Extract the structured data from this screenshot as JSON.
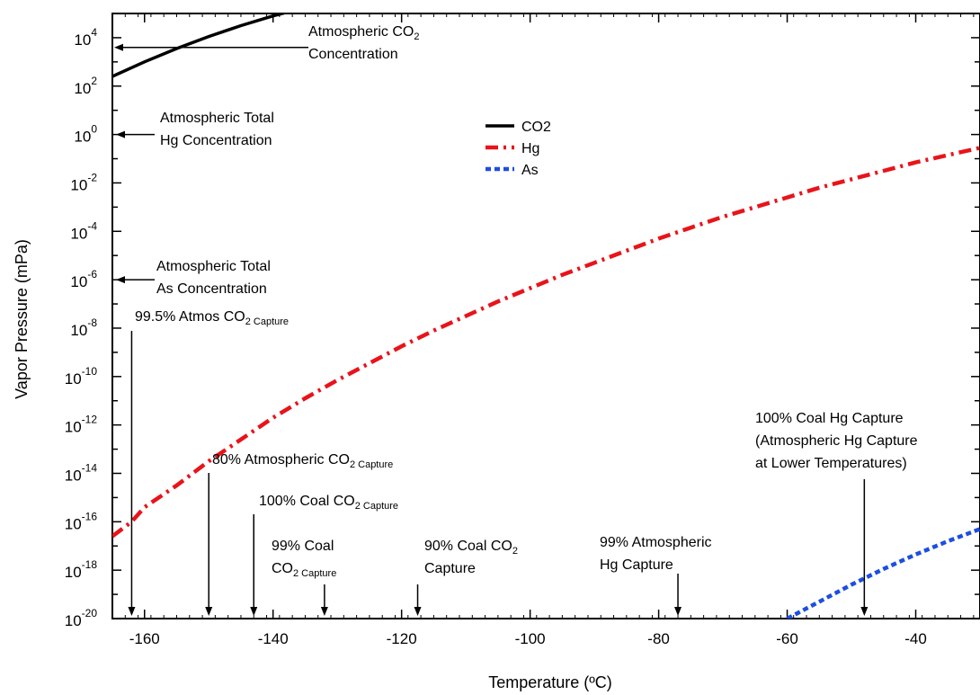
{
  "chart_data": {
    "type": "line",
    "xlabel": "Temperature (ºC)",
    "ylabel": "Vapor Pressure (mPa)",
    "xlim": [
      -165,
      -30
    ],
    "ylim_log10": [
      -20,
      5
    ],
    "y_scale": "log",
    "x_ticks": [
      -160,
      -140,
      -120,
      -100,
      -80,
      -60,
      -40
    ],
    "y_tick_exponents": [
      -20,
      -18,
      -16,
      -14,
      -12,
      -10,
      -8,
      -6,
      -4,
      -2,
      0,
      2,
      4
    ],
    "y_tick_base": "10",
    "legend_position": "top-center",
    "series": [
      {
        "name": "CO2",
        "color": "#000000",
        "style": "solid",
        "x": [
          -165,
          -160,
          -155,
          -150,
          -145,
          -140,
          -135
        ],
        "log10_y": [
          2.4,
          3.0,
          3.55,
          4.05,
          4.5,
          4.9,
          5.25
        ]
      },
      {
        "name": "Hg",
        "color": "#e8141b",
        "style": "dash-dot",
        "x": [
          -165,
          -162,
          -160,
          -155,
          -150,
          -145,
          -140,
          -135,
          -130,
          -125,
          -120,
          -115,
          -110,
          -105,
          -100,
          -95,
          -90,
          -85,
          -80,
          -75,
          -70,
          -65,
          -60,
          -55,
          -50,
          -45,
          -40,
          -35,
          -30
        ],
        "log10_y": [
          -16.6,
          -16.0,
          -15.4,
          -14.5,
          -13.5,
          -12.6,
          -11.7,
          -10.9,
          -10.15,
          -9.45,
          -8.75,
          -8.1,
          -7.5,
          -6.9,
          -6.35,
          -5.8,
          -5.3,
          -4.8,
          -4.3,
          -3.85,
          -3.4,
          -3.0,
          -2.6,
          -2.2,
          -1.85,
          -1.5,
          -1.15,
          -0.85,
          -0.55
        ]
      },
      {
        "name": "As",
        "color": "#1c4ee0",
        "style": "dotted",
        "x": [
          -60,
          -55,
          -50,
          -45,
          -40,
          -35,
          -30
        ],
        "log10_y": [
          -20.0,
          -19.3,
          -18.6,
          -17.95,
          -17.35,
          -16.8,
          -16.3
        ]
      }
    ],
    "annotations": [
      {
        "id": "atm-co2",
        "lines": [
          "Atmospheric CO|2",
          "Concentration"
        ],
        "arrow": "left",
        "target_log10_y": 3.6
      },
      {
        "id": "atm-hg",
        "lines": [
          "Atmospheric Total",
          "Hg Concentration"
        ],
        "arrow": "left",
        "target_log10_y": 0
      },
      {
        "id": "atm-as",
        "lines": [
          "Atmospheric Total",
          "As Concentration"
        ],
        "arrow": "left",
        "target_log10_y": -6
      },
      {
        "id": "co2-995",
        "lines": [
          "99.5% Atmos CO|2 Capture"
        ],
        "arrow": "down",
        "target_x": -162
      },
      {
        "id": "co2-80",
        "lines": [
          "80% Atmospheric CO|2 Capture"
        ],
        "arrow": "down",
        "target_x": -150
      },
      {
        "id": "co2-coal-100",
        "lines": [
          "100% Coal CO|2 Capture"
        ],
        "arrow": "down",
        "target_x": -143
      },
      {
        "id": "co2-coal-99",
        "lines": [
          "99% Coal",
          "CO|2 Capture"
        ],
        "arrow": "down",
        "target_x": -132
      },
      {
        "id": "co2-coal-90",
        "lines": [
          "90% Coal CO|2",
          "Capture"
        ],
        "arrow": "down",
        "target_x": -117.5
      },
      {
        "id": "hg-atm-99",
        "lines": [
          "99% Atmospheric",
          "Hg Capture"
        ],
        "arrow": "down",
        "target_x": -77
      },
      {
        "id": "hg-coal-100",
        "lines": [
          "100% Coal Hg Capture",
          "(Atmospheric Hg Capture",
          "at Lower Temperatures)"
        ],
        "arrow": "down",
        "target_x": -48
      }
    ]
  }
}
